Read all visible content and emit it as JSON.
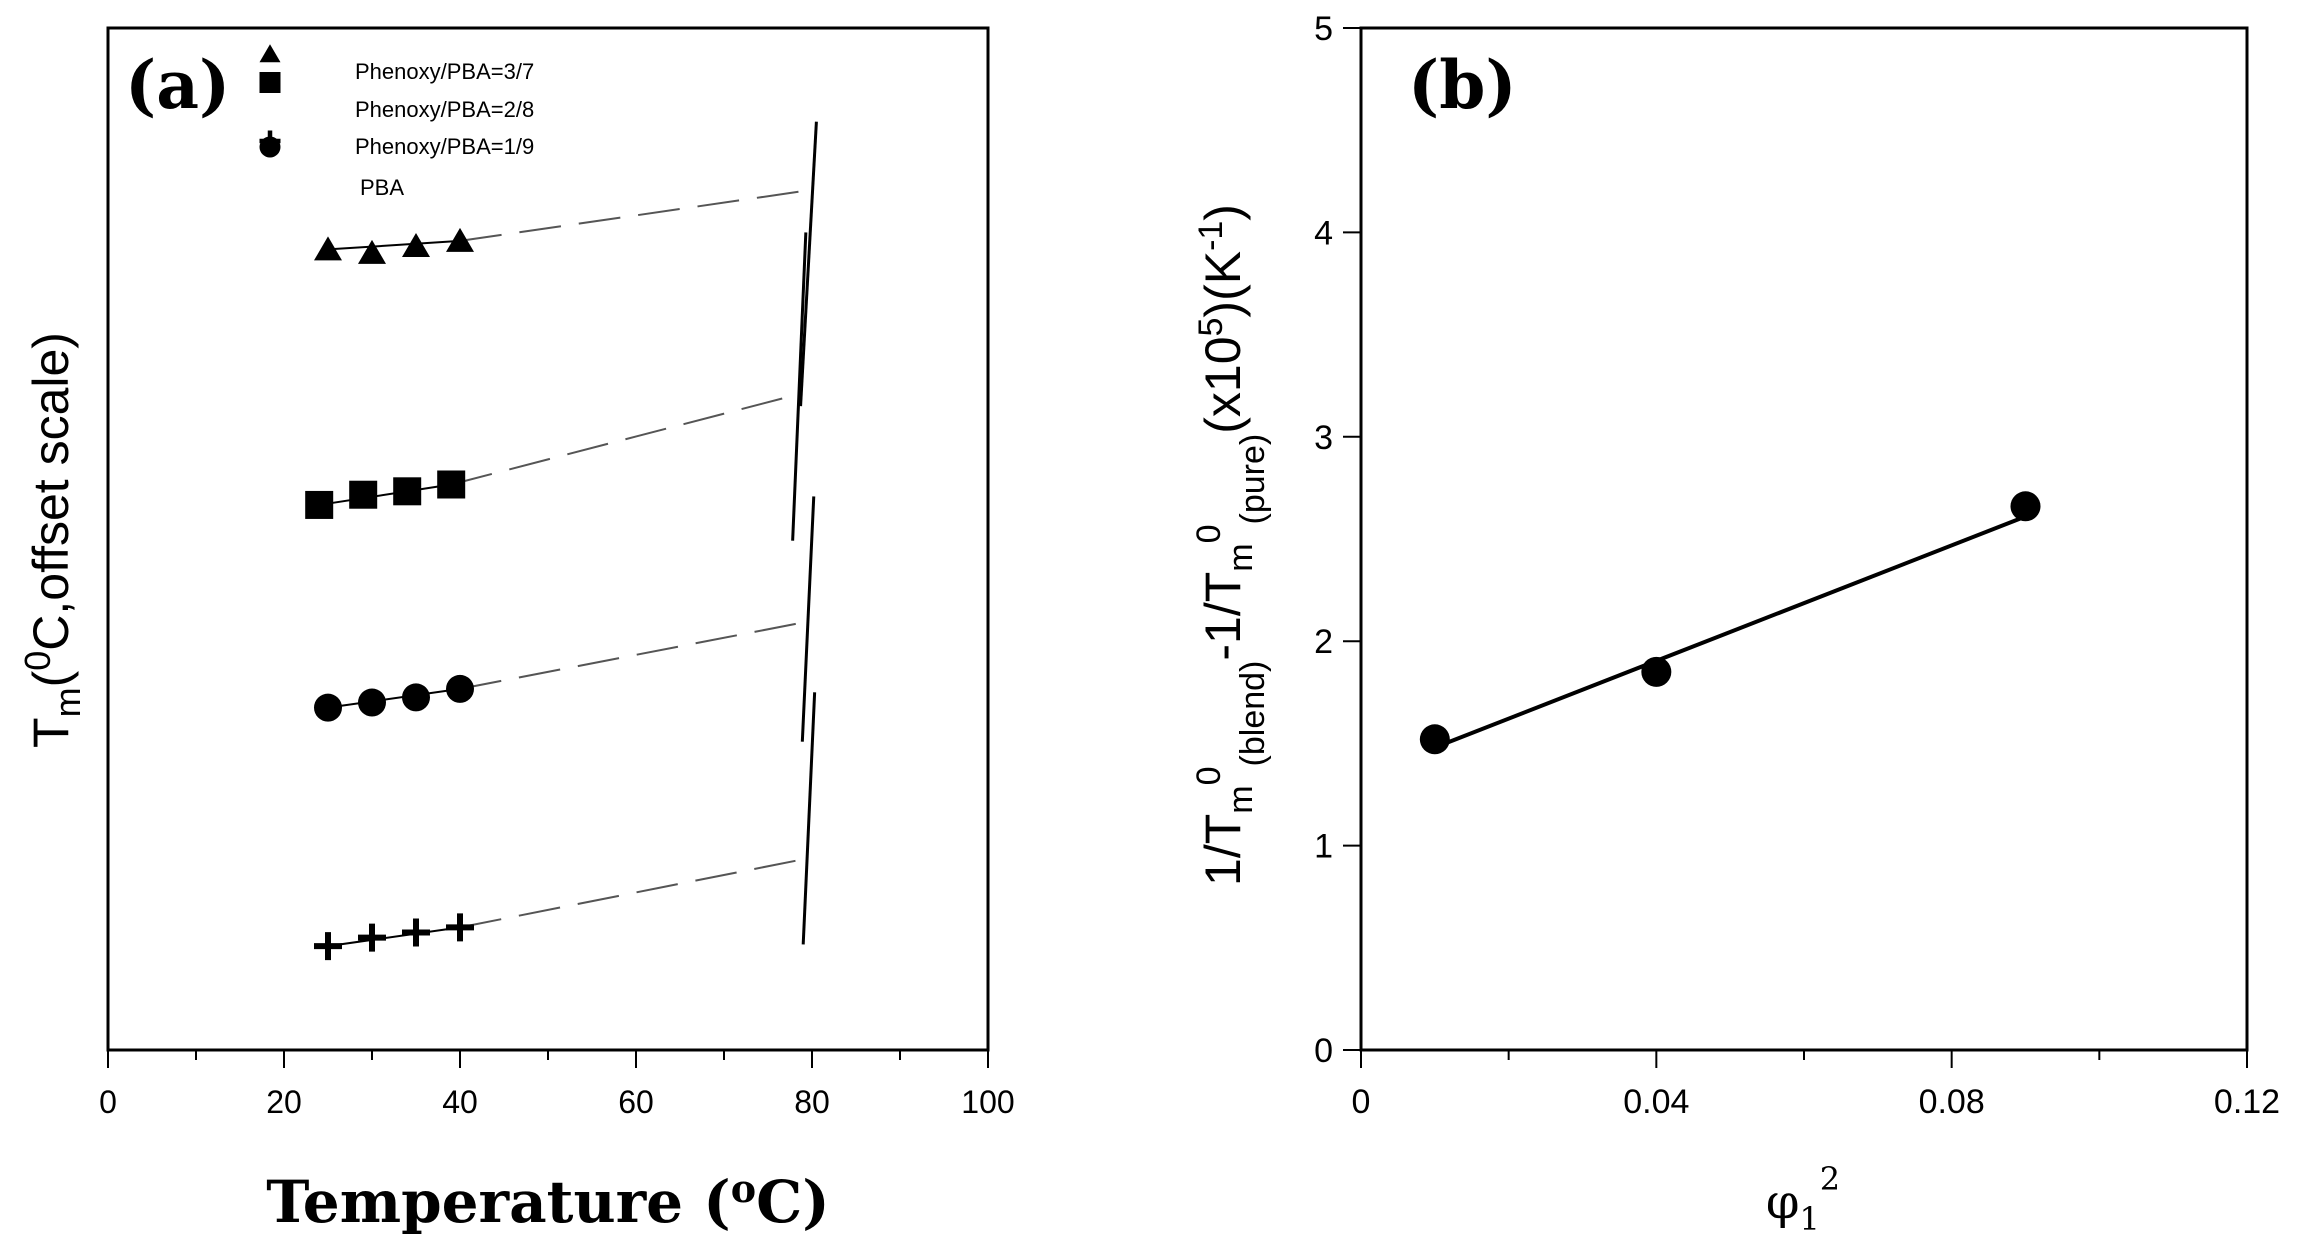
{
  "chart_data": [
    {
      "panel": "(a)",
      "type": "line",
      "title": "",
      "xlabel": "Temperature (°C)",
      "xlabel_parts": {
        "before": "Temperature (",
        "sup": "o",
        "after": "C)"
      },
      "ylabel_parts": {
        "T": "T",
        "sub": "m",
        "open": "(",
        "sup": "0",
        "rest": "C,offset scale)"
      },
      "xlim": [
        0,
        100
      ],
      "x_ticks": [
        0,
        20,
        40,
        60,
        80,
        100
      ],
      "x_tick_labels": [
        "0",
        "20",
        "40",
        "60",
        "80",
        "100"
      ],
      "y_ticks_shown": false,
      "series": [
        {
          "name": "Phenoxy/PBA=3/7",
          "marker": "triangle",
          "x": [
            25,
            30,
            35,
            40
          ],
          "y": [
            4.7,
            4.68,
            4.72,
            4.75
          ],
          "fit_end": [
            80,
            5.05
          ],
          "tm0_line": {
            "x": [
              78.7,
              80.5
            ],
            "y": [
              3.78,
              5.45
            ]
          }
        },
        {
          "name": "Phenoxy/PBA=2/8",
          "marker": "square",
          "x": [
            24,
            29,
            34,
            39
          ],
          "y": [
            3.2,
            3.26,
            3.28,
            3.32
          ],
          "fit_end": [
            78.5,
            3.85
          ],
          "tm0_line": {
            "x": [
              77.8,
              79.3
            ],
            "y": [
              2.99,
              4.8
            ]
          }
        },
        {
          "name": "Phenoxy/PBA=1/9",
          "marker": "circle",
          "x": [
            25,
            30,
            35,
            40
          ],
          "y": [
            2.01,
            2.04,
            2.07,
            2.12
          ],
          "fit_end": [
            80,
            2.52
          ],
          "tm0_line": {
            "x": [
              78.9,
              80.2
            ],
            "y": [
              1.81,
              3.25
            ]
          }
        },
        {
          "name": "PBA",
          "marker": "plus",
          "x": [
            25,
            30,
            35,
            40
          ],
          "y": [
            0.61,
            0.66,
            0.69,
            0.72
          ],
          "fit_end": [
            80,
            1.13
          ],
          "tm0_line": {
            "x": [
              79.0,
              80.3
            ],
            "y": [
              0.62,
              2.1
            ]
          }
        }
      ],
      "legend": {
        "placement": "top-left",
        "entries": [
          "Phenoxy/PBA=3/7",
          "Phenoxy/PBA=2/8",
          "Phenoxy/PBA=1/9",
          "PBA"
        ]
      }
    },
    {
      "panel": "(b)",
      "type": "scatter",
      "title": "",
      "xlabel": "φ₁²",
      "xlabel_parts": {
        "base": "φ",
        "sub": "1",
        "sup": "2"
      },
      "ylabel_parts": {
        "p1": "1/T",
        "p2": "m",
        "p3": "0",
        "p4": "(blend)",
        "p5": "-1/T",
        "p6": "m",
        "p7": "0",
        "p8": "(pure)",
        "p9": "(x10",
        "p10": "5",
        "p11": ")(K",
        "p12": "-1",
        "p13": ")"
      },
      "xlim": [
        0,
        0.12
      ],
      "ylim": [
        0,
        5
      ],
      "x_ticks": [
        0,
        0.04,
        0.08,
        0.12
      ],
      "x_tick_labels": [
        "0",
        "0.04",
        "0.08",
        "0.12"
      ],
      "y_ticks": [
        0,
        1,
        2,
        3,
        4,
        5
      ],
      "y_tick_labels": [
        "0",
        "1",
        "2",
        "3",
        "4",
        "5"
      ],
      "points": {
        "x": [
          0.01,
          0.04,
          0.09
        ],
        "y": [
          1.52,
          1.85,
          2.66
        ]
      },
      "fit_line": {
        "x": [
          0.01,
          0.09
        ],
        "y": [
          1.48,
          2.61
        ]
      }
    }
  ]
}
